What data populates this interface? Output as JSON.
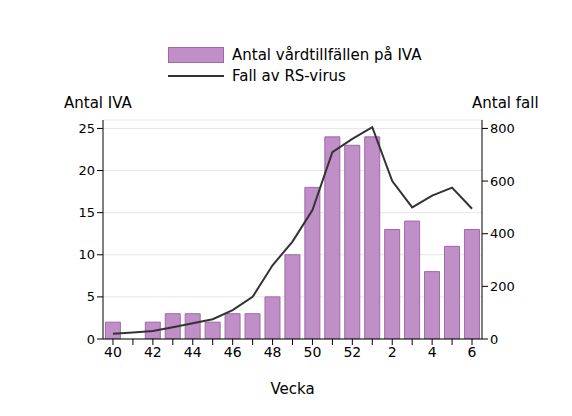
{
  "chart_data": {
    "type": "bar",
    "x_label": "Vecka",
    "y_label": "Antal IVA",
    "y2_label": "Antal fall",
    "categories": [
      "40",
      null,
      "42",
      null,
      "44",
      null,
      "46",
      null,
      "48",
      null,
      "50",
      null,
      "52",
      null,
      "2",
      null,
      "4",
      null,
      "6"
    ],
    "series": [
      {
        "name": "Antal vårdtillfällen på IVA",
        "type": "bar",
        "color": "#c08fc8",
        "values": [
          2,
          0,
          2,
          3,
          3,
          2,
          3,
          3,
          5,
          10,
          18,
          24,
          23,
          24,
          13,
          14,
          8,
          11,
          13
        ]
      },
      {
        "name": "Fall av RS-virus",
        "type": "line",
        "axis": "y2",
        "color": "#333333",
        "values": [
          20,
          25,
          30,
          45,
          60,
          75,
          110,
          160,
          280,
          370,
          490,
          710,
          760,
          805,
          600,
          500,
          545,
          575,
          495
        ]
      }
    ],
    "ylim": [
      0,
      26
    ],
    "yticks": [
      0,
      5,
      10,
      15,
      20,
      25
    ],
    "y2lim": [
      0,
      832
    ],
    "y2ticks": [
      0,
      200,
      400,
      600,
      800
    ],
    "grid": true,
    "legend": "top"
  }
}
